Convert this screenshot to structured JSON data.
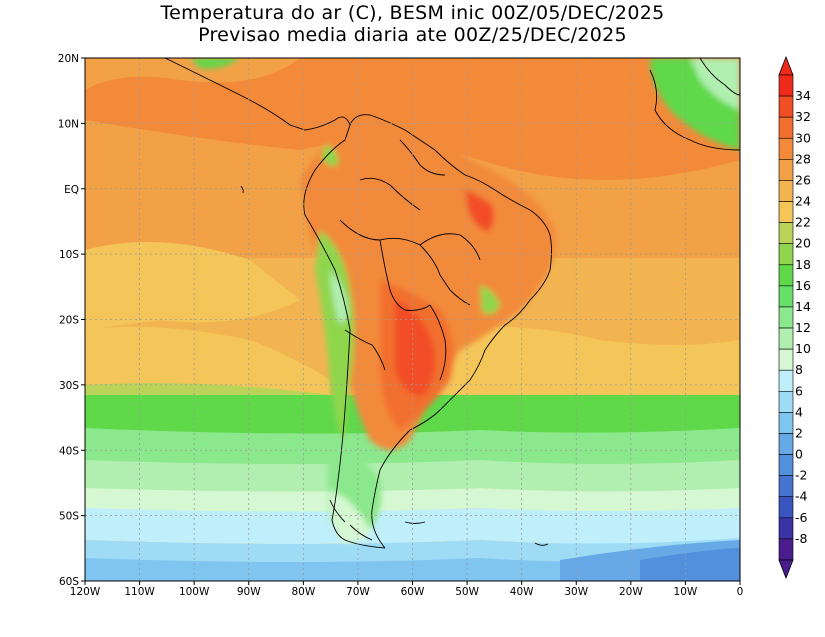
{
  "title": {
    "line1": "Temperatura do ar (C), BESM inic 00Z/05/DEC/2025",
    "line2": "Previsao media diaria ate 00Z/25/DEC/2025"
  },
  "axes": {
    "lon_labels": [
      "120W",
      "110W",
      "100W",
      "90W",
      "80W",
      "70W",
      "60W",
      "50W",
      "40W",
      "30W",
      "20W",
      "10W",
      "0"
    ],
    "lat_labels": [
      "20N",
      "10N",
      "EQ",
      "10S",
      "20S",
      "30S",
      "40S",
      "50S",
      "60S"
    ],
    "lon_range": [
      -120,
      0
    ],
    "lat_range": [
      -60,
      20
    ]
  },
  "colorbar": {
    "labels": [
      "34",
      "32",
      "30",
      "28",
      "26",
      "24",
      "22",
      "20",
      "18",
      "16",
      "14",
      "12",
      "10",
      "8",
      "6",
      "4",
      "2",
      "0",
      "-2",
      "-4",
      "-6",
      "-8"
    ],
    "colors": [
      "#ef2a1a",
      "#f24e26",
      "#f26f2f",
      "#f28a3a",
      "#f3a147",
      "#f2b451",
      "#f4c659",
      "#bcd35a",
      "#8fd64e",
      "#5fd84a",
      "#66e06a",
      "#8ce88c",
      "#b1efb1",
      "#d5f8d2",
      "#bfeffa",
      "#9edcf6",
      "#80c4f0",
      "#66a9e6",
      "#528fdc",
      "#4474d0",
      "#3a55c0",
      "#3b33a6",
      "#4a1c8e"
    ]
  }
}
